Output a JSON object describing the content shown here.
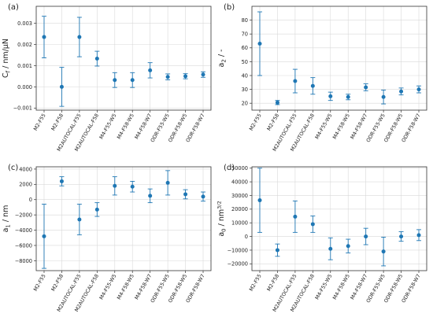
{
  "chart_data": [
    {
      "panel_label": "(a)",
      "type": "scatter",
      "ylabel": "C_f / nm/μN",
      "categories": [
        "M2-F55",
        "M2-F58",
        "M2AUTOCAL-F55",
        "M2AUTOCAL-F58",
        "M4-F55-W5",
        "M4-F58-W5",
        "M4-F58-W7",
        "ODR-F55-W5",
        "ODR-F58-W5",
        "ODR-F58-W7"
      ],
      "values": [
        0.00235,
        0.0,
        0.00235,
        0.00133,
        0.00032,
        0.00032,
        0.00078,
        0.00047,
        0.0005,
        0.00058
      ],
      "errors": [
        0.00098,
        0.00092,
        0.00093,
        0.00035,
        0.00035,
        0.00035,
        0.00036,
        0.00014,
        0.00012,
        0.00013
      ],
      "ylim": [
        -0.0011,
        0.0038
      ],
      "yticks": [
        -0.001,
        0.0,
        0.001,
        0.002,
        0.003
      ],
      "yticklabels": [
        "−0.001",
        "0.000",
        "0.001",
        "0.002",
        "0.003"
      ],
      "grid": true,
      "color": "#1f77b4"
    },
    {
      "panel_label": "(b)",
      "type": "scatter",
      "ylabel": "a_2 / -",
      "categories": [
        "M2-F55",
        "M2-F58",
        "M2AUTOCAL-F55",
        "M2AUTOCAL-F58",
        "M4-F55-W5",
        "M4-F58-W5",
        "M4-F58-W7",
        "ODR-F55-W5",
        "ODR-F58-W5",
        "ODR-F58-W7"
      ],
      "values": [
        63,
        20.5,
        36,
        32.5,
        25,
        24.5,
        31.5,
        24.5,
        28.5,
        30
      ],
      "errors": [
        23,
        1.5,
        8.5,
        6,
        3,
        2,
        2.5,
        5,
        2.5,
        2.5
      ],
      "ylim": [
        15,
        90
      ],
      "yticks": [
        20,
        30,
        40,
        50,
        60,
        70,
        80
      ],
      "yticklabels": [
        "20",
        "30",
        "40",
        "50",
        "60",
        "70",
        "80"
      ],
      "grid": true,
      "color": "#1f77b4"
    },
    {
      "panel_label": "(c)",
      "type": "scatter",
      "ylabel": "a_1 / nm",
      "categories": [
        "M2-F55",
        "M2-F58",
        "M2AUTOCAL-F55",
        "M2AUTOCAL-F58",
        "M4-F55-W5",
        "M4-F58-W5",
        "M4-F58-W7",
        "ODR-F55-W5",
        "ODR-F58-W5",
        "ODR-F58-W7"
      ],
      "values": [
        -4800,
        2400,
        -2600,
        -1300,
        1800,
        1700,
        500,
        2200,
        700,
        400
      ],
      "errors": [
        4200,
        600,
        2000,
        900,
        1200,
        700,
        900,
        1600,
        600,
        600
      ],
      "ylim": [
        -9300,
        4300
      ],
      "yticks": [
        -8000,
        -6000,
        -4000,
        -2000,
        0,
        2000,
        4000
      ],
      "yticklabels": [
        "−8000",
        "−6000",
        "−4000",
        "−2000",
        "0",
        "2000",
        "4000"
      ],
      "grid": true,
      "color": "#1f77b4"
    },
    {
      "panel_label": "(d)",
      "type": "scatter",
      "ylabel": "a_0 / nm^3/2",
      "categories": [
        "M2-F55",
        "M2-F58",
        "M2AUTOCAL-F55",
        "M2AUTOCAL-F58",
        "M4-F55-W5",
        "M4-F58-W5",
        "M4-F58-W7",
        "ODR-F55-W5",
        "ODR-F58-W5",
        "ODR-F58-W7"
      ],
      "values": [
        26500,
        -10000,
        14500,
        9000,
        -9000,
        -7000,
        0,
        -11000,
        0,
        1000
      ],
      "errors": [
        23500,
        4500,
        11500,
        6000,
        8000,
        5000,
        6000,
        10500,
        3500,
        4000
      ],
      "ylim": [
        -25000,
        51000
      ],
      "yticks": [
        -20000,
        -10000,
        0,
        10000,
        20000,
        30000,
        40000,
        50000
      ],
      "yticklabels": [
        "−20000",
        "−10000",
        "0",
        "10000",
        "20000",
        "30000",
        "40000",
        "50000"
      ],
      "grid": true,
      "color": "#1f77b4"
    }
  ]
}
